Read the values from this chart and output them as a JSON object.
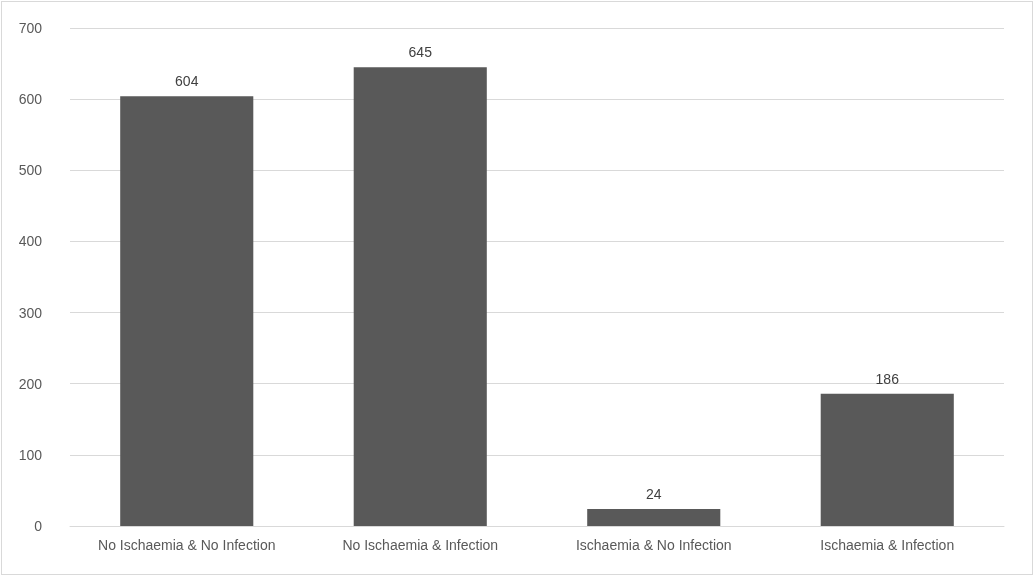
{
  "chart_data": {
    "type": "bar",
    "categories": [
      "No Ischaemia & No Infection",
      "No Ischaemia & Infection",
      "Ischaemia & No Infection",
      "Ischaemia & Infection"
    ],
    "values": [
      604,
      645,
      24,
      186
    ],
    "color": "#595959",
    "ylim": [
      0,
      700
    ],
    "yticks": [
      0,
      100,
      200,
      300,
      400,
      500,
      600,
      700
    ],
    "grid": "y",
    "data_labels": true
  }
}
